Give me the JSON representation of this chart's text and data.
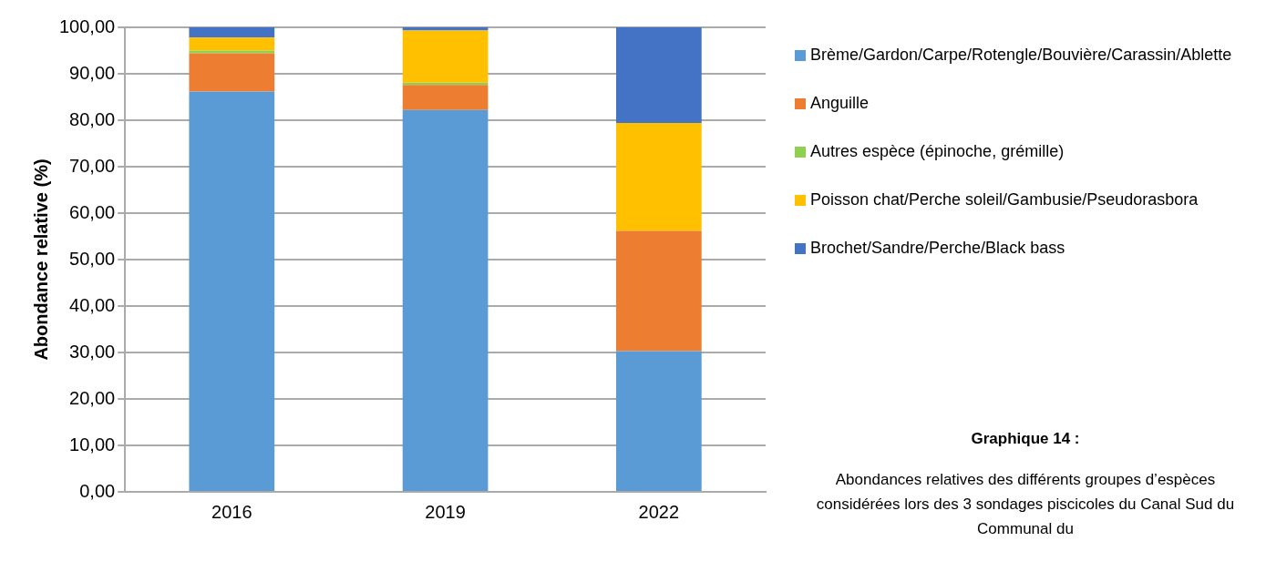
{
  "chart_data": {
    "type": "bar",
    "stacked": true,
    "ylabel": "Abondance relative (%)",
    "categories": [
      "2016",
      "2019",
      "2022"
    ],
    "series": [
      {
        "name": "Brème/Gardon/Carpe/Rotengle/Bouvière/Carassin/Ablette",
        "color": "#5b9bd5",
        "values": [
          86.2,
          82.2,
          30.3
        ]
      },
      {
        "name": "Anguille",
        "color": "#ed7d31",
        "values": [
          8.2,
          5.4,
          25.9
        ]
      },
      {
        "name": "Autres espèce (épinoche, grémille)",
        "color": "#8fd14f",
        "values": [
          0.6,
          0.5,
          0
        ]
      },
      {
        "name": "Poisson chat/Perche soleil/Gambusie/Pseudorasbora",
        "color": "#ffc000",
        "values": [
          2.8,
          11.2,
          23.2
        ]
      },
      {
        "name": "Brochet/Sandre/Perche/Black bass",
        "color": "#4472c4",
        "values": [
          2.2,
          0.7,
          20.6
        ]
      }
    ],
    "ylim": [
      0,
      100
    ],
    "yticks": [
      {
        "value": 0,
        "label": "0,00"
      },
      {
        "value": 10,
        "label": "10,00"
      },
      {
        "value": 20,
        "label": "20,00"
      },
      {
        "value": 30,
        "label": "30,00"
      },
      {
        "value": 40,
        "label": "40,00"
      },
      {
        "value": 50,
        "label": "50,00"
      },
      {
        "value": 60,
        "label": "60,00"
      },
      {
        "value": 70,
        "label": "70,00"
      },
      {
        "value": 80,
        "label": "80,00"
      },
      {
        "value": 90,
        "label": "90,00"
      },
      {
        "value": 100,
        "label": "100,00"
      }
    ],
    "grid": "y",
    "legend": "right",
    "annotations": [
      "Graphique 14 :",
      "Abondances relatives des différents groupes d’espèces considérées lors des 3 sondages piscicoles du Canal Sud du Communal du"
    ]
  }
}
